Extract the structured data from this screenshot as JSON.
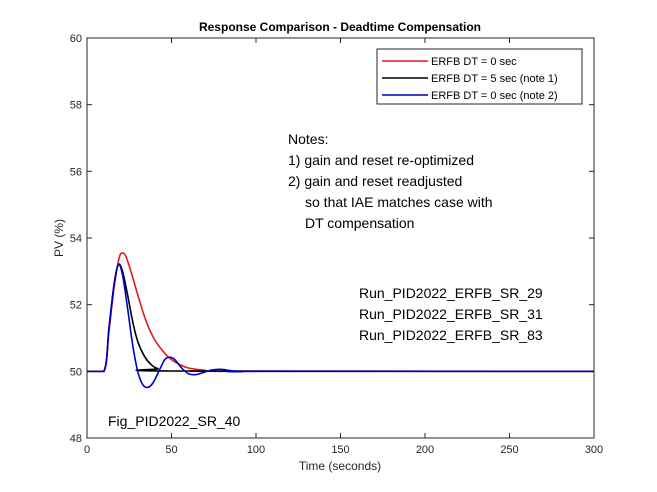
{
  "chart_data": {
    "type": "line",
    "title": "Response Comparison - Deadtime Compensation",
    "xlabel": "Time (seconds)",
    "ylabel": "PV (%)",
    "xlim": [
      0,
      300
    ],
    "ylim": [
      48,
      60
    ],
    "xticks": [
      0,
      50,
      100,
      150,
      200,
      250,
      300
    ],
    "yticks": [
      48,
      50,
      52,
      54,
      56,
      58,
      60
    ],
    "grid": false,
    "legend_position": "top-right",
    "series": [
      {
        "name": "ERFB DT = 0 sec",
        "color": "#e41a1c",
        "x": [
          0,
          10,
          13,
          16,
          19,
          21,
          23,
          26,
          30,
          35,
          40,
          45,
          50,
          55,
          60,
          70,
          80,
          300
        ],
        "y": [
          50,
          50,
          51.2,
          52.5,
          53.4,
          53.55,
          53.45,
          53.0,
          52.3,
          51.5,
          50.95,
          50.6,
          50.35,
          50.2,
          50.1,
          50.03,
          50.0,
          50
        ]
      },
      {
        "name": "ERFB DT = 5 sec (note 1)",
        "color": "#000000",
        "x": [
          0,
          10,
          13,
          16,
          18.5,
          21,
          24,
          27,
          30,
          34,
          38,
          42,
          50,
          300
        ],
        "y": [
          50,
          50,
          51.3,
          52.6,
          53.2,
          53.0,
          52.3,
          51.5,
          50.9,
          50.45,
          50.2,
          50.08,
          50.01,
          50
        ]
      },
      {
        "name": "ERFB DT = 0 sec (note 2)",
        "color": "#0000c8",
        "x": [
          0,
          10,
          13,
          16,
          18.5,
          21,
          24,
          27,
          30,
          33,
          36,
          39,
          43,
          46,
          49,
          52,
          56,
          60,
          64,
          68,
          73,
          79,
          85,
          92,
          100,
          300
        ],
        "y": [
          50,
          50,
          51.3,
          52.6,
          53.2,
          52.9,
          51.9,
          50.8,
          50.0,
          49.6,
          49.52,
          49.65,
          50.05,
          50.35,
          50.42,
          50.35,
          50.1,
          49.93,
          49.9,
          49.95,
          50.03,
          50.06,
          50.02,
          49.99,
          50,
          50
        ]
      }
    ],
    "annotations": {
      "notes": [
        "Notes:",
        "1) gain and reset re-optimized",
        "2) gain and reset readjusted",
        "so that IAE matches case with",
        "DT compensation"
      ],
      "runs": [
        "Run_PID2022_ERFB_SR_29",
        "Run_PID2022_ERFB_SR_31",
        "Run_PID2022_ERFB_SR_83"
      ],
      "figure_id": "Fig_PID2022_SR_40"
    }
  }
}
